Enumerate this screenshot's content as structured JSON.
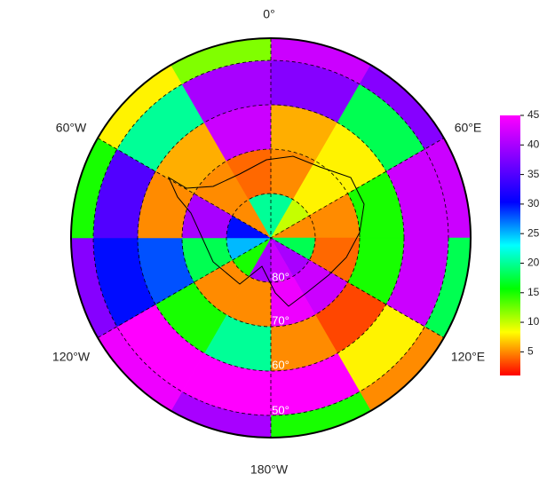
{
  "map": {
    "type": "polar-heatmap",
    "lon_labels": [
      "0°",
      "60°E",
      "120°E",
      "180°W",
      "120°W",
      "60°W"
    ],
    "lat_labels": [
      "80°",
      "70°",
      "60°",
      "50°"
    ],
    "values": [
      [
        20,
        10,
        5,
        18,
        40,
        42,
        40,
        15,
        25,
        30,
        5,
        20
      ],
      [
        5,
        8,
        5,
        4,
        42,
        44,
        5,
        5,
        18,
        40,
        5,
        4
      ],
      [
        6,
        8,
        15,
        15,
        3,
        5,
        20,
        15,
        28,
        5,
        6,
        42
      ],
      [
        38,
        18,
        42,
        42,
        8,
        45,
        45,
        45,
        30,
        35,
        20,
        40
      ],
      [
        42,
        38,
        42,
        18,
        5,
        15,
        40,
        44,
        38,
        15,
        8,
        12
      ]
    ],
    "colormap": [
      "#ff0000",
      "#ffff00",
      "#00ff00",
      "#00ffff",
      "#0000ff",
      "#8000ff",
      "#ff00ff"
    ],
    "colorbar": {
      "lim": [
        1,
        45
      ],
      "ticks": [
        5,
        10,
        15,
        20,
        25,
        30,
        35,
        40,
        45
      ]
    }
  }
}
